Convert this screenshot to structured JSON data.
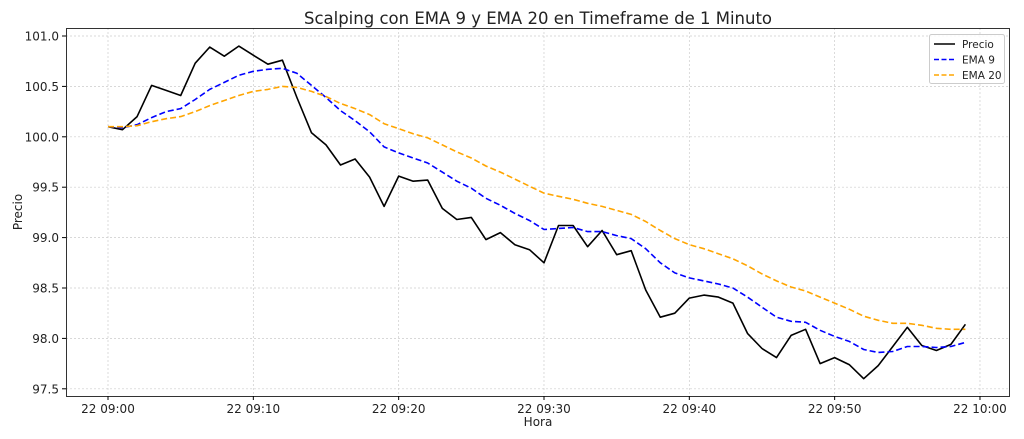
{
  "chart_data": {
    "type": "line",
    "title": "Scalping con EMA 9 y EMA 20 en Timeframe de 1 Minuto",
    "xlabel": "Hora",
    "ylabel": "Precio",
    "ylim": [
      97.45,
      101.07
    ],
    "yticks": [
      "97.5",
      "98.0",
      "98.5",
      "99.0",
      "99.5",
      "100.0",
      "100.5",
      "101.0"
    ],
    "xticks": [
      "22 09:00",
      "22 09:10",
      "22 09:20",
      "22 09:30",
      "22 09:40",
      "22 09:50",
      "22 10:00"
    ],
    "grid": true,
    "legend_position": "top-right",
    "x_minutes_from_0900": "x values are minutes 09:00-09:59",
    "x": [
      "09:00",
      "09:01",
      "09:02",
      "09:03",
      "09:04",
      "09:05",
      "09:06",
      "09:07",
      "09:08",
      "09:09",
      "09:10",
      "09:11",
      "09:12",
      "09:13",
      "09:14",
      "09:15",
      "09:16",
      "09:17",
      "09:18",
      "09:19",
      "09:20",
      "09:21",
      "09:22",
      "09:23",
      "09:24",
      "09:25",
      "09:26",
      "09:27",
      "09:28",
      "09:29",
      "09:30",
      "09:31",
      "09:32",
      "09:33",
      "09:34",
      "09:35",
      "09:36",
      "09:37",
      "09:38",
      "09:39",
      "09:40",
      "09:41",
      "09:42",
      "09:43",
      "09:44",
      "09:45",
      "09:46",
      "09:47",
      "09:48",
      "09:49",
      "09:50",
      "09:51",
      "09:52",
      "09:53",
      "09:54",
      "09:55",
      "09:56",
      "09:57",
      "09:58",
      "09:59"
    ],
    "series": [
      {
        "name": "Precio",
        "color": "#000000",
        "dash": "solid",
        "values": [
          100.1,
          100.07,
          100.2,
          100.51,
          100.46,
          100.41,
          100.73,
          100.89,
          100.8,
          100.9,
          100.81,
          100.72,
          100.76,
          100.39,
          100.04,
          99.92,
          99.72,
          99.78,
          99.6,
          99.31,
          99.61,
          99.56,
          99.57,
          99.29,
          99.18,
          99.2,
          98.98,
          99.05,
          98.93,
          98.88,
          98.75,
          99.12,
          99.12,
          98.91,
          99.07,
          98.83,
          98.87,
          98.48,
          98.21,
          98.25,
          98.4,
          98.43,
          98.41,
          98.35,
          98.05,
          97.9,
          97.81,
          98.03,
          98.09,
          97.75,
          97.81,
          97.74,
          97.6,
          97.73,
          97.92,
          98.11,
          97.93,
          97.88,
          97.94,
          98.14
        ]
      },
      {
        "name": "EMA 9",
        "color": "#0000ff",
        "dash": "dashed",
        "values": [
          100.1,
          100.09,
          100.12,
          100.19,
          100.25,
          100.28,
          100.37,
          100.47,
          100.54,
          100.61,
          100.65,
          100.67,
          100.68,
          100.63,
          100.51,
          100.39,
          100.26,
          100.16,
          100.05,
          99.9,
          99.84,
          99.79,
          99.74,
          99.65,
          99.56,
          99.49,
          99.39,
          99.32,
          99.24,
          99.17,
          99.08,
          99.09,
          99.1,
          99.06,
          99.06,
          99.02,
          98.99,
          98.89,
          98.75,
          98.65,
          98.6,
          98.57,
          98.54,
          98.5,
          98.41,
          98.31,
          98.21,
          98.17,
          98.16,
          98.08,
          98.02,
          97.97,
          97.89,
          97.86,
          97.87,
          97.92,
          97.92,
          97.91,
          97.92,
          97.96
        ]
      },
      {
        "name": "EMA 20",
        "color": "#ffa500",
        "dash": "dashed",
        "values": [
          100.1,
          100.1,
          100.11,
          100.15,
          100.18,
          100.2,
          100.25,
          100.31,
          100.36,
          100.41,
          100.45,
          100.47,
          100.5,
          100.49,
          100.45,
          100.4,
          100.33,
          100.28,
          100.22,
          100.13,
          100.08,
          100.03,
          99.99,
          99.92,
          99.85,
          99.79,
          99.71,
          99.65,
          99.58,
          99.51,
          99.44,
          99.41,
          99.38,
          99.34,
          99.31,
          99.27,
          99.23,
          99.16,
          99.07,
          98.99,
          98.93,
          98.89,
          98.84,
          98.79,
          98.72,
          98.64,
          98.57,
          98.51,
          98.47,
          98.41,
          98.35,
          98.29,
          98.22,
          98.18,
          98.15,
          98.15,
          98.13,
          98.1,
          98.09,
          98.09
        ]
      }
    ]
  }
}
